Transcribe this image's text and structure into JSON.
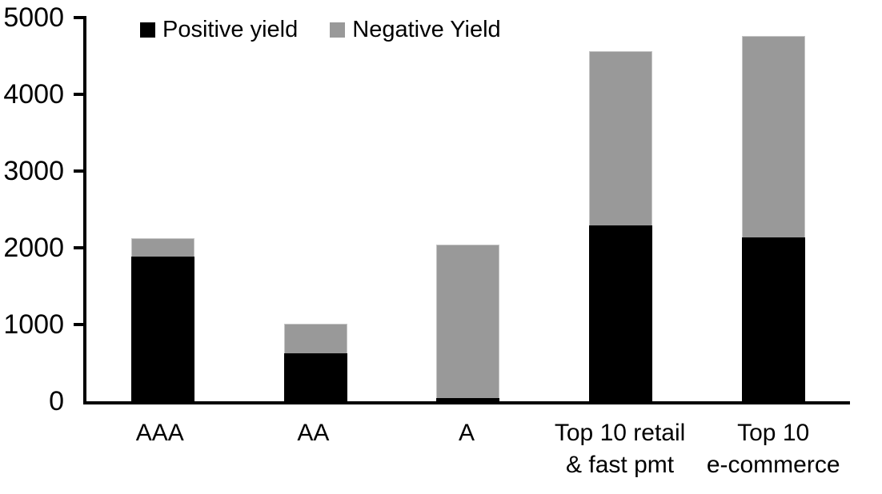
{
  "chart_data": {
    "type": "bar",
    "stacked": true,
    "title": "",
    "xlabel": "",
    "ylabel": "",
    "categories": [
      "AAA",
      "AA",
      "A",
      "Top 10 retail\n& fast pmt",
      "Top 10\ne-commerce"
    ],
    "series": [
      {
        "name": "Positive yield",
        "color": "#000000",
        "values": [
          1890,
          620,
          40,
          2290,
          2140
        ]
      },
      {
        "name": "Negative Yield",
        "color": "#999999",
        "values": [
          240,
          390,
          2000,
          2270,
          2620
        ]
      }
    ],
    "ylim": [
      0,
      5000
    ],
    "yticks": [
      0,
      1000,
      2000,
      3000,
      4000,
      5000
    ],
    "grid": false,
    "legend_position": "top-inside"
  },
  "colors": {
    "axis": "#000000",
    "background": "#ffffff",
    "negative_segment_border": "#c4c4c4"
  }
}
